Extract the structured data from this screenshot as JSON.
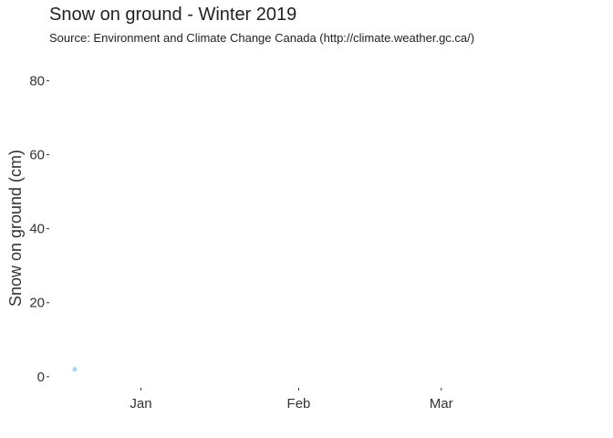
{
  "chart_data": {
    "type": "scatter",
    "title": "Snow on ground - Winter 2019",
    "subtitle": "Source: Environment and Climate Change Canada (http://climate.weather.gc.ca/)",
    "xlabel": "",
    "ylabel": "Snow on ground (cm)",
    "xlim": [
      "2018-12-14",
      "2019-03-29"
    ],
    "ylim": [
      -3,
      87
    ],
    "x_ticks": [
      "2019-01-01",
      "2019-02-01",
      "2019-03-01"
    ],
    "x_tick_labels": [
      "Jan",
      "Feb",
      "Mar"
    ],
    "y_ticks": [
      0,
      20,
      40,
      60,
      80
    ],
    "y_tick_labels": [
      "0",
      "20",
      "40",
      "60",
      "80"
    ],
    "grid": false,
    "legend": "none",
    "series": [
      {
        "color": "#a8d8ea",
        "points": [
          {
            "x": "2018-12-19",
            "y": 2
          }
        ]
      }
    ]
  }
}
